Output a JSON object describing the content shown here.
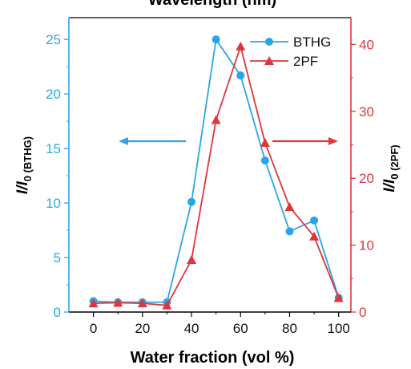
{
  "header": {
    "cropped_title": "Wavelength (nm)"
  },
  "colors": {
    "bthg": "#2aa6e8",
    "pf": "#e0353a",
    "axis": "#000000"
  },
  "chart_data": {
    "type": "line",
    "xlabel": "Water fraction (vol %)",
    "ylabel_left": "I/I0 (BTHG)",
    "ylabel_right": "I/I0 (2PF)",
    "xlim": [
      -10,
      105
    ],
    "ylim_left": [
      0,
      27
    ],
    "ylim_right": [
      0,
      44
    ],
    "xticks": [
      0,
      20,
      40,
      60,
      80,
      100
    ],
    "yticks_left": [
      0,
      5,
      10,
      15,
      20,
      25
    ],
    "yticks_right": [
      0,
      10,
      20,
      30,
      40
    ],
    "legend_position": "top-right",
    "series": [
      {
        "name": "BTHG",
        "axis": "left",
        "marker": "circle",
        "x": [
          0,
          10,
          20,
          30,
          40,
          50,
          60,
          70,
          80,
          90,
          100
        ],
        "y": [
          1.0,
          0.9,
          0.9,
          0.9,
          10.1,
          25.0,
          21.7,
          13.9,
          7.4,
          8.4,
          1.3
        ]
      },
      {
        "name": "2PF",
        "axis": "right",
        "marker": "triangle",
        "x": [
          0,
          10,
          20,
          30,
          40,
          50,
          60,
          70,
          80,
          90,
          100
        ],
        "y": [
          1.3,
          1.4,
          1.3,
          1.0,
          7.8,
          28.7,
          39.7,
          25.3,
          15.7,
          11.3,
          2.1
        ]
      }
    ],
    "arrows": [
      {
        "direction": "left",
        "color": "#2aa6e8"
      },
      {
        "direction": "right",
        "color": "#e0353a"
      }
    ]
  }
}
